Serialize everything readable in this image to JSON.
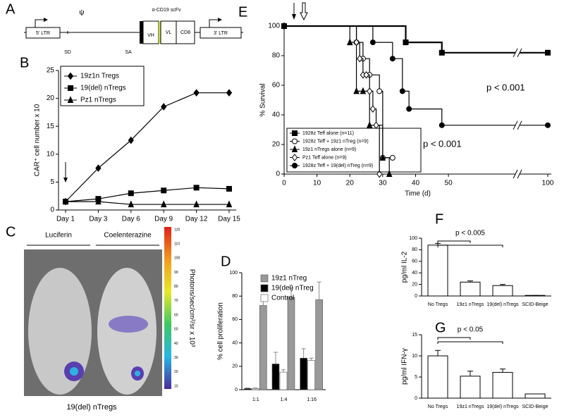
{
  "panel_a": {
    "panel": "A",
    "ltr5": "5' LTR",
    "psi": "ψ",
    "sd": "SD",
    "sa": "SA",
    "scfv": "α-CD19 scFv",
    "vh": "VH",
    "vl": "VL",
    "cd8": "CD8",
    "ltr3": "3' LTR"
  },
  "panel_c": {
    "panel": "C",
    "left_label": "Luciferin",
    "right_label": "Coelenterazine",
    "caption": "19(del) nTregs",
    "colorbar_label": "Photons/sec/cm²/sr x 10³",
    "colorbar_ticks": [
      120,
      110,
      100,
      90,
      80,
      70,
      60,
      50,
      40,
      30,
      20,
      10
    ]
  },
  "chart_data": [
    {
      "panel": "B",
      "type": "line",
      "y_label": "CAR⁺ cell number x 10",
      "categories": [
        "Day 1",
        "Day 3",
        "Day 6",
        "Day 9",
        "Day 12",
        "Day 15"
      ],
      "series": [
        {
          "name": "19z1n Tregs",
          "marker": "diamond",
          "color": "#000000",
          "values": [
            1.5,
            7.5,
            12.5,
            18.5,
            21,
            21
          ]
        },
        {
          "name": "19(del) nTregs",
          "marker": "square",
          "color": "#000000",
          "values": [
            1.5,
            2,
            3,
            3.5,
            4,
            3.8
          ]
        },
        {
          "name": "Pz1 nTregs",
          "marker": "triangle",
          "color": "#000000",
          "values": [
            1.5,
            1.5,
            1,
            1,
            1,
            1
          ]
        }
      ],
      "ylim": [
        0,
        25
      ],
      "yticks": [
        0,
        5,
        10,
        15,
        20,
        25
      ]
    },
    {
      "panel": "D",
      "type": "grouped_bar",
      "y_label": "% cell proliferation",
      "categories": [
        "1:1",
        "1:4",
        "1:16"
      ],
      "series": [
        {
          "name": "19z1 nTreg",
          "color": "#999999",
          "values": [
            72,
            79,
            77
          ],
          "errors": [
            5,
            8,
            15
          ]
        },
        {
          "name": "19(del) nTreg",
          "color": "#000000",
          "values": [
            1,
            22,
            27
          ],
          "errors": [
            0.5,
            10,
            8
          ]
        },
        {
          "name": "Control",
          "color": "#ffffff",
          "values": [
            1,
            15,
            25
          ],
          "errors": [
            0.5,
            2,
            2
          ]
        }
      ],
      "ylim": [
        0,
        100
      ],
      "yticks": [
        0,
        20,
        40,
        60,
        80,
        100
      ]
    },
    {
      "panel": "E",
      "type": "survival",
      "x_label": "Time (d)",
      "y_label": "% Survival",
      "xlim": [
        0,
        100
      ],
      "xticks": [
        0,
        10,
        20,
        30,
        40,
        50,
        100
      ],
      "ylim": [
        0,
        100
      ],
      "yticks": [
        0,
        20,
        40,
        60,
        80,
        100
      ],
      "annotations": [
        "p < 0.001",
        "p < 0.001"
      ],
      "series": [
        {
          "name": "1928z Teff alone (n=11)",
          "marker": "square",
          "filled": true,
          "color": "#000000",
          "x": [
            0,
            37,
            48,
            100
          ],
          "values": [
            100,
            89,
            82,
            82
          ]
        },
        {
          "name": "1928z Teff + 19z1 nTreg (n=9)",
          "marker": "circle",
          "filled": false,
          "color": "#000000",
          "x": [
            0,
            22,
            24,
            26,
            29,
            30,
            33
          ],
          "values": [
            100,
            89,
            78,
            67,
            56,
            11,
            11
          ]
        },
        {
          "name": "19z1 nTregs alone (n=9)",
          "marker": "triangle",
          "filled": true,
          "color": "#000000",
          "x": [
            0,
            20,
            22,
            24,
            26,
            30,
            32
          ],
          "values": [
            100,
            89,
            56,
            56,
            33,
            11,
            0
          ]
        },
        {
          "name": "Pz1 Teff alone (n=9)",
          "marker": "diamond",
          "filled": false,
          "color": "#000000",
          "x": [
            0,
            22,
            23,
            24,
            25,
            26,
            27,
            28,
            29
          ],
          "values": [
            100,
            89,
            78,
            67,
            67,
            56,
            44,
            33,
            0
          ]
        },
        {
          "name": "1928z Teff + 19(del) nTreg (n=9)",
          "marker": "circle",
          "filled": true,
          "color": "#000000",
          "x": [
            0,
            27,
            33,
            36,
            38,
            48,
            100
          ],
          "values": [
            100,
            89,
            78,
            56,
            44,
            33,
            33
          ]
        }
      ]
    },
    {
      "panel": "F",
      "type": "bar",
      "y_label": "pg/ml IL-2",
      "annotation": "p < 0.005",
      "categories": [
        "No Tregs",
        "19z1 nTregs",
        "19(del) nTregs",
        "SCID-Beige"
      ],
      "values": [
        88,
        24,
        18,
        1
      ],
      "errors": [
        3,
        2,
        2,
        0
      ],
      "color": "#ffffff",
      "ylim": [
        0,
        100
      ],
      "yticks": [
        0,
        20,
        40,
        60,
        80,
        100
      ]
    },
    {
      "panel": "G",
      "type": "bar",
      "y_label": "pg/ml IFN-γ",
      "annotation": "p < 0.05",
      "categories": [
        "No Tregs",
        "19z1 nTregs",
        "19(del) nTregs",
        "SCID-Beige"
      ],
      "values": [
        10,
        5.2,
        6.1,
        1
      ],
      "errors": [
        1.3,
        1.2,
        0.8,
        0
      ],
      "color": "#ffffff",
      "ylim": [
        0,
        15
      ],
      "yticks": [
        0,
        5,
        10,
        15
      ]
    }
  ]
}
